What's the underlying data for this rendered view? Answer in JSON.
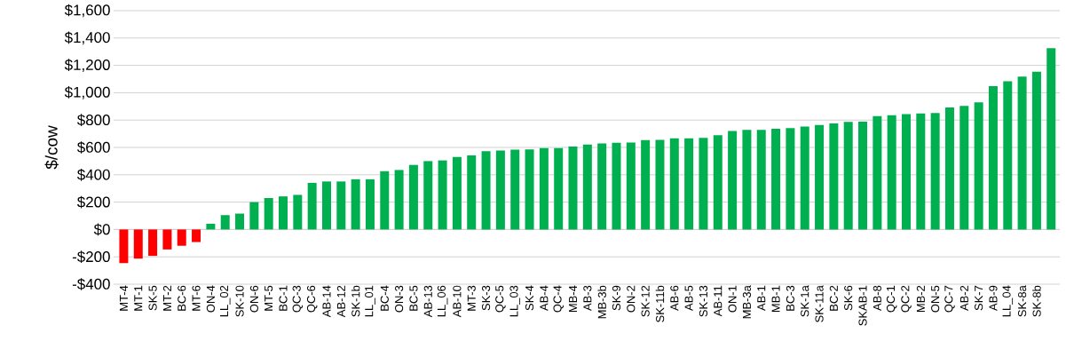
{
  "chart_data": {
    "type": "bar",
    "ylabel": "$/cow",
    "categories": [
      "MT-4",
      "MT-1",
      "SK-5",
      "MT-2",
      "BC-6",
      "MT-6",
      "ON-4",
      "LL_02",
      "SK-10",
      "ON-6",
      "MT-5",
      "BC-1",
      "QC-3",
      "QC-6",
      "AB-14",
      "AB-12",
      "SK-1b",
      "LL_01",
      "BC-4",
      "ON-3",
      "BC-5",
      "AB-13",
      "LL_06",
      "AB-10",
      "MT-3",
      "SK-3",
      "QC-5",
      "LL_03",
      "SK-4",
      "AB-4",
      "QC-4",
      "MB-4",
      "AB-3",
      "MB-3b",
      "SK-9",
      "ON-2",
      "SK-12",
      "SK-11b",
      "AB-6",
      "AB-5",
      "SK-13",
      "AB-11",
      "ON-1",
      "MB-3a",
      "AB-1",
      "MB-1",
      "BC-3",
      "SK-1a",
      "SK-11a",
      "BC-2",
      "SK-6",
      "SKAB-1",
      "AB-8",
      "QC-1",
      "QC-2",
      "MB-2",
      "ON-5",
      "QC-7",
      "AB-2",
      "SK-7",
      "AB-9",
      "LL_04",
      "SK-8a",
      "SK-8b",
      null
    ],
    "values": [
      -246,
      -213,
      -193,
      -146,
      -119,
      -92,
      42,
      105,
      116,
      200,
      230,
      242,
      253,
      341,
      351,
      351,
      367,
      367,
      426,
      435,
      472,
      500,
      505,
      530,
      542,
      572,
      577,
      584,
      586,
      595,
      595,
      607,
      621,
      629,
      634,
      636,
      653,
      655,
      667,
      667,
      670,
      689,
      720,
      728,
      728,
      737,
      742,
      752,
      764,
      776,
      786,
      788,
      829,
      836,
      843,
      848,
      851,
      892,
      904,
      930,
      1048,
      1084,
      1118,
      1154,
      1325
    ],
    "colors": [
      "#ff0000",
      "#ff0000",
      "#ff0000",
      "#ff0000",
      "#ff0000",
      "#ff0000",
      "#00b050",
      "#00b050",
      "#00b050",
      "#00b050",
      "#00b050",
      "#00b050",
      "#00b050",
      "#00b050",
      "#00b050",
      "#00b050",
      "#00b050",
      "#00b050",
      "#00b050",
      "#00b050",
      "#00b050",
      "#00b050",
      "#00b050",
      "#00b050",
      "#00b050",
      "#00b050",
      "#00b050",
      "#00b050",
      "#00b050",
      "#00b050",
      "#00b050",
      "#00b050",
      "#00b050",
      "#00b050",
      "#00b050",
      "#00b050",
      "#00b050",
      "#00b050",
      "#00b050",
      "#00b050",
      "#00b050",
      "#00b050",
      "#00b050",
      "#00b050",
      "#00b050",
      "#00b050",
      "#00b050",
      "#00b050",
      "#00b050",
      "#00b050",
      "#00b050",
      "#00b050",
      "#00b050",
      "#00b050",
      "#00b050",
      "#00b050",
      "#00b050",
      "#00b050",
      "#00b050",
      "#00b050",
      "#00b050",
      "#00b050",
      "#00b050",
      "#00b050",
      "#00b050"
    ],
    "ylim": [
      -400,
      1600
    ],
    "yticks": [
      {
        "value": -400,
        "label": "-$400"
      },
      {
        "value": -200,
        "label": "-$200"
      },
      {
        "value": 0,
        "label": "$0"
      },
      {
        "value": 200,
        "label": "$200"
      },
      {
        "value": 400,
        "label": "$400"
      },
      {
        "value": 600,
        "label": "$600"
      },
      {
        "value": 800,
        "label": "$800"
      },
      {
        "value": 1000,
        "label": "$1,000"
      },
      {
        "value": 1200,
        "label": "$1,200"
      },
      {
        "value": 1400,
        "label": "$1,400"
      },
      {
        "value": 1600,
        "label": "$1,600"
      }
    ],
    "grid": "y"
  }
}
